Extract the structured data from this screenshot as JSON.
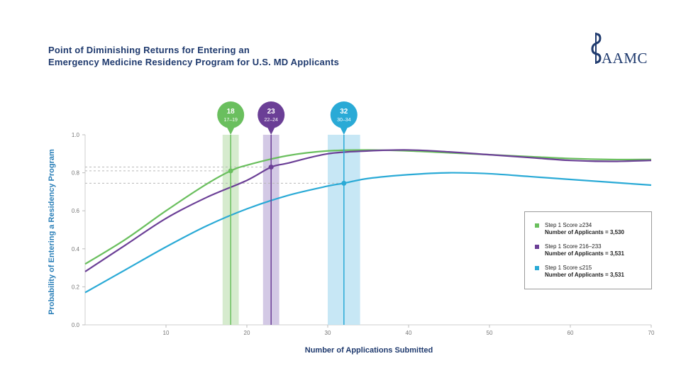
{
  "header": {
    "title_line1": "Point of Diminishing Returns for Entering an",
    "title_line2": "Emergency Medicine Residency Program for U.S. MD Applicants",
    "logo_text": "AAMC"
  },
  "chart_data": {
    "type": "line",
    "title": "Point of Diminishing Returns for Entering an Emergency Medicine Residency Program for U.S. MD Applicants",
    "xlabel": "Number of Applications Submitted",
    "ylabel": "Probability of Entering a Residency Program",
    "xlim": [
      0,
      70
    ],
    "ylim": [
      0,
      1.0
    ],
    "x_ticks": [
      10,
      20,
      30,
      40,
      50,
      60,
      70
    ],
    "y_ticks": [
      0.0,
      0.2,
      0.4,
      0.6,
      0.8,
      1.0
    ],
    "x_tick_labels": [
      "10",
      "20",
      "30",
      "40",
      "50",
      "60",
      "70"
    ],
    "y_tick_labels": [
      "0.0",
      "0.2",
      "0.4",
      "0.6",
      "0.8",
      "1.0"
    ],
    "series": [
      {
        "name": "Step 1 Score ≥234",
        "legend_line1": "Step 1 Score ≥234",
        "legend_line2": "Number of Applicants = 3,530",
        "color": "#6abf5e",
        "x": [
          0,
          5,
          10,
          15,
          18,
          20,
          25,
          30,
          35,
          40,
          45,
          50,
          55,
          60,
          65,
          70
        ],
        "y": [
          0.32,
          0.45,
          0.6,
          0.74,
          0.81,
          0.84,
          0.89,
          0.915,
          0.92,
          0.915,
          0.905,
          0.895,
          0.885,
          0.875,
          0.87,
          0.87
        ]
      },
      {
        "name": "Step 1 Score 216–233",
        "legend_line1": "Step 1 Score 216–233",
        "legend_line2": "Number of Applicants = 3,531",
        "color": "#6b3f96",
        "x": [
          0,
          5,
          10,
          15,
          20,
          23,
          25,
          30,
          35,
          40,
          45,
          50,
          55,
          60,
          65,
          70
        ],
        "y": [
          0.28,
          0.42,
          0.56,
          0.67,
          0.76,
          0.83,
          0.85,
          0.9,
          0.915,
          0.92,
          0.91,
          0.895,
          0.88,
          0.865,
          0.86,
          0.865
        ]
      },
      {
        "name": "Step 1 Score ≤215",
        "legend_line1": "Step 1 Score ≤215",
        "legend_line2": "Number of Applicants = 3,531",
        "color": "#2aaad6",
        "x": [
          0,
          5,
          10,
          15,
          20,
          25,
          30,
          32,
          35,
          40,
          45,
          50,
          55,
          60,
          65,
          70
        ],
        "y": [
          0.17,
          0.29,
          0.41,
          0.52,
          0.61,
          0.68,
          0.73,
          0.745,
          0.77,
          0.79,
          0.8,
          0.795,
          0.78,
          0.765,
          0.75,
          0.735
        ]
      }
    ],
    "markers": [
      {
        "series": 0,
        "value": "18",
        "range": "17–19",
        "x": 18,
        "x_min": 17,
        "x_max": 19,
        "y": 0.81,
        "color": "#6abf5e",
        "band_color": "#cfe7c6"
      },
      {
        "series": 1,
        "value": "23",
        "range": "22–24",
        "x": 23,
        "x_min": 22,
        "x_max": 24,
        "y": 0.83,
        "color": "#6b3f96",
        "band_color": "#cbbfe0"
      },
      {
        "series": 2,
        "value": "32",
        "range": "30–34",
        "x": 32,
        "x_min": 30,
        "x_max": 34,
        "y": 0.745,
        "color": "#2aaad6",
        "band_color": "#bde3f3"
      }
    ],
    "legend_position": "right"
  }
}
